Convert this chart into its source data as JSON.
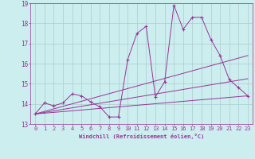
{
  "xlabel": "Windchill (Refroidissement éolien,°C)",
  "background_color": "#cceeee",
  "grid_color": "#aacccc",
  "line_color": "#993399",
  "xlim": [
    -0.5,
    23.5
  ],
  "ylim": [
    13,
    19
  ],
  "yticks": [
    13,
    14,
    15,
    16,
    17,
    18,
    19
  ],
  "xticks": [
    0,
    1,
    2,
    3,
    4,
    5,
    6,
    7,
    8,
    9,
    10,
    11,
    12,
    13,
    14,
    15,
    16,
    17,
    18,
    19,
    20,
    21,
    22,
    23
  ],
  "series1_x": [
    0,
    1,
    2,
    3,
    4,
    5,
    6,
    7,
    8,
    9,
    10,
    11,
    12,
    13,
    14,
    15,
    16,
    17,
    18,
    19,
    20,
    21,
    22,
    23
  ],
  "series1_y": [
    13.5,
    14.05,
    13.9,
    14.05,
    14.5,
    14.4,
    14.1,
    13.85,
    13.35,
    13.35,
    16.2,
    17.5,
    17.85,
    14.35,
    15.1,
    18.9,
    17.7,
    18.3,
    18.3,
    17.2,
    16.4,
    15.2,
    14.8,
    14.4
  ],
  "series2_x": [
    0,
    23
  ],
  "series2_y": [
    13.5,
    14.4
  ],
  "series3_x": [
    0,
    23
  ],
  "series3_y": [
    13.5,
    15.25
  ],
  "series4_x": [
    0,
    23
  ],
  "series4_y": [
    13.5,
    16.4
  ]
}
